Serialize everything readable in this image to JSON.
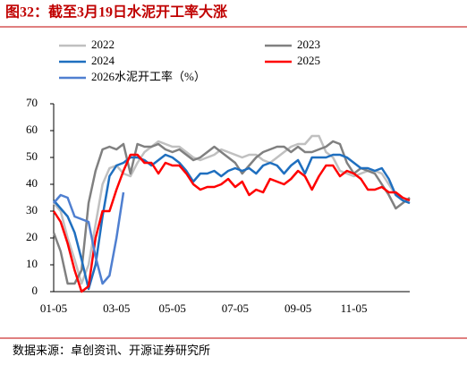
{
  "chart_data": {
    "type": "line",
    "title": "图32：截至3月19日水泥开工率大涨",
    "source": "数据来源：卓创资讯、开源证券研究所",
    "categories": [
      "01-05",
      null,
      null,
      null,
      null,
      null,
      null,
      null,
      null,
      "03-05",
      null,
      null,
      null,
      null,
      null,
      null,
      null,
      "05-05",
      null,
      null,
      null,
      null,
      null,
      null,
      null,
      null,
      "07-05",
      null,
      null,
      null,
      null,
      null,
      null,
      null,
      null,
      "09-05",
      null,
      null,
      null,
      null,
      null,
      null,
      null,
      "11-05",
      null,
      null,
      null,
      null,
      null,
      null,
      null,
      null
    ],
    "ylim": [
      0,
      70
    ],
    "yticks": [
      0,
      10,
      20,
      30,
      40,
      50,
      60,
      70
    ],
    "series": [
      {
        "name": "2022",
        "color": "#c0c0c0",
        "values": [
          33,
          30,
          20,
          12,
          3,
          10,
          25,
          40,
          46,
          47,
          44,
          43,
          48,
          52,
          54,
          56,
          55,
          54,
          54,
          52,
          50,
          49,
          50,
          51,
          53,
          52,
          51,
          50,
          51,
          51,
          49,
          48,
          50,
          52,
          54,
          55,
          55,
          58,
          58,
          52,
          50,
          45,
          44,
          43,
          44,
          45,
          45,
          44,
          40,
          36,
          34,
          33
        ]
      },
      {
        "name": "2023",
        "color": "#808080",
        "values": [
          22,
          15,
          3,
          3,
          8,
          33,
          45,
          53,
          54,
          53,
          55,
          44,
          55,
          54,
          54,
          55,
          53,
          52,
          53,
          51,
          49,
          50,
          52,
          54,
          52,
          50,
          48,
          44,
          47,
          50,
          52,
          53,
          54,
          54,
          52,
          54,
          52,
          52,
          53,
          54,
          56,
          55,
          48,
          44,
          46,
          45,
          44,
          40,
          36,
          31,
          33,
          35
        ]
      },
      {
        "name": "2024",
        "color": "#1f6fbf",
        "values": [
          34,
          31,
          28,
          22,
          12,
          1,
          10,
          28,
          43,
          47,
          48,
          50,
          50,
          49,
          47,
          49,
          51,
          50,
          48,
          45,
          41,
          44,
          44,
          45,
          43,
          45,
          46,
          45,
          46,
          44,
          47,
          48,
          47,
          44,
          47,
          49,
          44,
          50,
          50,
          50,
          51,
          51,
          50,
          48,
          46,
          46,
          45,
          46,
          42,
          36,
          34,
          33
        ]
      },
      {
        "name": "2025",
        "color": "#ff0000",
        "values": [
          30,
          26,
          18,
          8,
          0,
          2,
          20,
          30,
          30,
          38,
          45,
          51,
          51,
          48,
          48,
          44,
          48,
          47,
          47,
          44,
          40,
          38,
          39,
          39,
          40,
          42,
          39,
          41,
          36,
          38,
          37,
          42,
          41,
          40,
          42,
          45,
          43,
          38,
          43,
          47,
          47,
          43,
          45,
          44,
          42,
          38,
          38,
          39,
          37,
          37,
          35,
          34
        ]
      },
      {
        "name": "2026水泥开工率（%）",
        "color": "#4f7fd0",
        "values": [
          33,
          36,
          35,
          28,
          27,
          26,
          13,
          3,
          6,
          20,
          37,
          null,
          null,
          null,
          null,
          null,
          null,
          null,
          null,
          null,
          null,
          null,
          null,
          null,
          null,
          null,
          null,
          null,
          null,
          null,
          null,
          null,
          null,
          null,
          null,
          null,
          null,
          null,
          null,
          null,
          null,
          null,
          null,
          null,
          null,
          null,
          null,
          null,
          null,
          null,
          null,
          null
        ]
      }
    ]
  }
}
